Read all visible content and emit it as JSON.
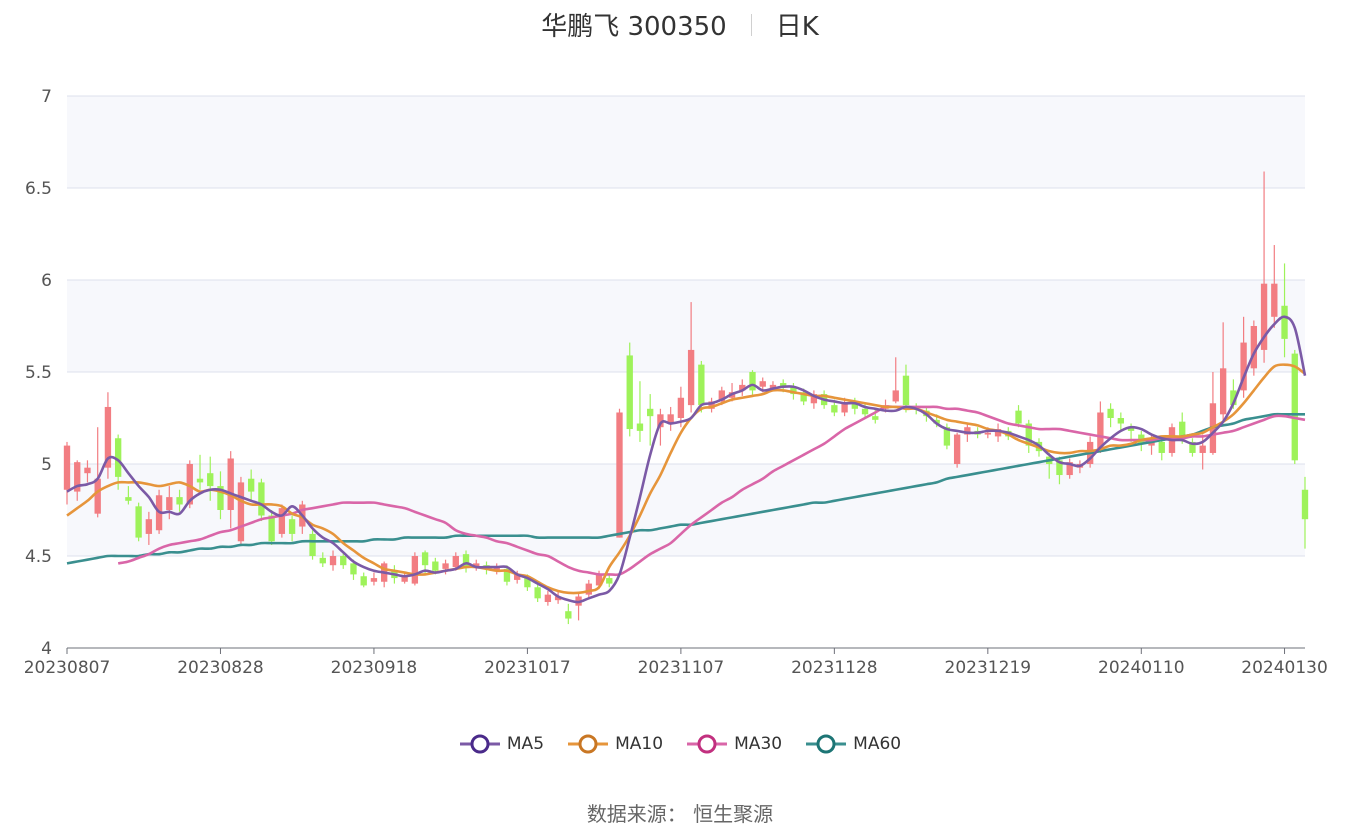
{
  "title": {
    "name_code": "华鹏飞 300350",
    "period": "日K"
  },
  "source": "数据来源： 恒生聚源",
  "colors": {
    "up": "#f27d82",
    "down": "#9ef25a",
    "ma5": "#7b5aa6",
    "ma10": "#e6953b",
    "ma30": "#d966a8",
    "ma60": "#3a8f8f",
    "grid": "#dde1ec",
    "band": "#f7f8fc"
  },
  "legend": [
    {
      "name": "MA5",
      "color": "#7b5aa6",
      "ring": "#4a2a8a"
    },
    {
      "name": "MA10",
      "color": "#e6953b",
      "ring": "#c97724"
    },
    {
      "name": "MA30",
      "color": "#d966a8",
      "ring": "#c2307f"
    },
    {
      "name": "MA60",
      "color": "#3a8f8f",
      "ring": "#1d7575"
    }
  ],
  "chart_data": {
    "type": "candlestick",
    "ylim": [
      4,
      7
    ],
    "yticks": [
      "4",
      "4.5",
      "5",
      "5.5",
      "6",
      "6.5",
      "7"
    ],
    "xticks": [
      {
        "label": "20230807",
        "index": 0
      },
      {
        "label": "20230828",
        "index": 15
      },
      {
        "label": "20230918",
        "index": 30
      },
      {
        "label": "20231017",
        "index": 45
      },
      {
        "label": "20231107",
        "index": 60
      },
      {
        "label": "20231128",
        "index": 75
      },
      {
        "label": "20231219",
        "index": 90
      },
      {
        "label": "20240110",
        "index": 105
      },
      {
        "label": "20240130",
        "index": 119
      }
    ],
    "candles": [
      [
        4.86,
        5.1,
        5.12,
        4.78
      ],
      [
        4.85,
        5.01,
        5.02,
        4.8
      ],
      [
        4.95,
        4.98,
        5.02,
        4.9
      ],
      [
        4.73,
        4.92,
        5.2,
        4.71
      ],
      [
        4.98,
        5.31,
        5.39,
        4.92
      ],
      [
        5.14,
        4.93,
        5.16,
        4.86
      ],
      [
        4.82,
        4.8,
        4.88,
        4.78
      ],
      [
        4.77,
        4.6,
        4.79,
        4.58
      ],
      [
        4.62,
        4.7,
        4.74,
        4.56
      ],
      [
        4.64,
        4.83,
        4.86,
        4.62
      ],
      [
        4.75,
        4.82,
        4.88,
        4.7
      ],
      [
        4.82,
        4.78,
        4.86,
        4.74
      ],
      [
        4.78,
        5.0,
        5.02,
        4.76
      ],
      [
        4.92,
        4.9,
        5.05,
        4.86
      ],
      [
        4.95,
        4.88,
        5.04,
        4.8
      ],
      [
        4.88,
        4.75,
        4.96,
        4.7
      ],
      [
        4.75,
        5.03,
        5.07,
        4.65
      ],
      [
        4.58,
        4.9,
        4.93,
        4.56
      ],
      [
        4.92,
        4.85,
        4.97,
        4.8
      ],
      [
        4.9,
        4.72,
        4.92,
        4.69
      ],
      [
        4.72,
        4.58,
        4.75,
        4.56
      ],
      [
        4.62,
        4.76,
        4.78,
        4.6
      ],
      [
        4.7,
        4.62,
        4.72,
        4.58
      ],
      [
        4.66,
        4.78,
        4.8,
        4.62
      ],
      [
        4.62,
        4.5,
        4.64,
        4.48
      ],
      [
        4.49,
        4.46,
        4.52,
        4.44
      ],
      [
        4.45,
        4.5,
        4.53,
        4.42
      ],
      [
        4.5,
        4.45,
        4.52,
        4.43
      ],
      [
        4.46,
        4.4,
        4.48,
        4.37
      ],
      [
        4.39,
        4.34,
        4.41,
        4.33
      ],
      [
        4.36,
        4.38,
        4.41,
        4.34
      ],
      [
        4.36,
        4.46,
        4.47,
        4.33
      ],
      [
        4.42,
        4.38,
        4.45,
        4.35
      ],
      [
        4.36,
        4.39,
        4.41,
        4.35
      ],
      [
        4.35,
        4.5,
        4.52,
        4.34
      ],
      [
        4.52,
        4.45,
        4.53,
        4.4
      ],
      [
        4.47,
        4.42,
        4.49,
        4.4
      ],
      [
        4.43,
        4.46,
        4.48,
        4.4
      ],
      [
        4.44,
        4.5,
        4.52,
        4.42
      ],
      [
        4.51,
        4.44,
        4.53,
        4.41
      ],
      [
        4.44,
        4.46,
        4.48,
        4.42
      ],
      [
        4.45,
        4.43,
        4.47,
        4.4
      ],
      [
        4.42,
        4.44,
        4.46,
        4.4
      ],
      [
        4.43,
        4.36,
        4.45,
        4.34
      ],
      [
        4.37,
        4.4,
        4.42,
        4.35
      ],
      [
        4.39,
        4.33,
        4.4,
        4.31
      ],
      [
        4.33,
        4.27,
        4.35,
        4.25
      ],
      [
        4.25,
        4.29,
        4.31,
        4.23
      ],
      [
        4.26,
        4.28,
        4.31,
        4.24
      ],
      [
        4.2,
        4.16,
        4.24,
        4.13
      ],
      [
        4.23,
        4.28,
        4.3,
        4.15
      ],
      [
        4.29,
        4.35,
        4.37,
        4.27
      ],
      [
        4.34,
        4.4,
        4.42,
        4.32
      ],
      [
        4.38,
        4.35,
        4.4,
        4.33
      ],
      [
        4.6,
        5.28,
        5.3,
        4.6
      ],
      [
        5.59,
        5.19,
        5.66,
        5.15
      ],
      [
        5.22,
        5.18,
        5.45,
        5.12
      ],
      [
        5.3,
        5.26,
        5.38,
        5.1
      ],
      [
        5.2,
        5.27,
        5.3,
        5.1
      ],
      [
        5.22,
        5.27,
        5.31,
        5.18
      ],
      [
        5.25,
        5.36,
        5.42,
        5.2
      ],
      [
        5.32,
        5.62,
        5.88,
        5.28
      ],
      [
        5.54,
        5.32,
        5.56,
        5.28
      ],
      [
        5.3,
        5.34,
        5.36,
        5.28
      ],
      [
        5.34,
        5.4,
        5.42,
        5.32
      ],
      [
        5.36,
        5.39,
        5.44,
        5.34
      ],
      [
        5.4,
        5.43,
        5.46,
        5.37
      ],
      [
        5.5,
        5.4,
        5.51,
        5.37
      ],
      [
        5.42,
        5.45,
        5.47,
        5.39
      ],
      [
        5.41,
        5.43,
        5.45,
        5.4
      ],
      [
        5.44,
        5.42,
        5.46,
        5.39
      ],
      [
        5.42,
        5.38,
        5.44,
        5.35
      ],
      [
        5.39,
        5.34,
        5.41,
        5.32
      ],
      [
        5.33,
        5.38,
        5.4,
        5.3
      ],
      [
        5.38,
        5.32,
        5.4,
        5.3
      ],
      [
        5.32,
        5.28,
        5.35,
        5.26
      ],
      [
        5.28,
        5.33,
        5.36,
        5.26
      ],
      [
        5.33,
        5.3,
        5.36,
        5.27
      ],
      [
        5.3,
        5.27,
        5.33,
        5.25
      ],
      [
        5.26,
        5.24,
        5.3,
        5.22
      ],
      [
        5.3,
        5.32,
        5.35,
        5.28
      ],
      [
        5.34,
        5.4,
        5.58,
        5.33
      ],
      [
        5.48,
        5.32,
        5.54,
        5.28
      ],
      [
        5.31,
        5.3,
        5.33,
        5.27
      ],
      [
        5.29,
        5.26,
        5.31,
        5.23
      ],
      [
        5.24,
        5.22,
        5.27,
        5.2
      ],
      [
        5.2,
        5.1,
        5.22,
        5.08
      ],
      [
        5.0,
        5.16,
        5.17,
        4.98
      ],
      [
        5.16,
        5.2,
        5.22,
        5.12
      ],
      [
        5.18,
        5.16,
        5.2,
        5.14
      ],
      [
        5.16,
        5.17,
        5.2,
        5.14
      ],
      [
        5.15,
        5.19,
        5.22,
        5.12
      ],
      [
        5.18,
        5.15,
        5.2,
        5.13
      ],
      [
        5.29,
        5.22,
        5.32,
        5.2
      ],
      [
        5.22,
        5.1,
        5.24,
        5.06
      ],
      [
        5.12,
        5.07,
        5.14,
        5.04
      ],
      [
        5.04,
        5.0,
        5.06,
        4.92
      ],
      [
        5.02,
        4.94,
        5.04,
        4.89
      ],
      [
        4.94,
        5.01,
        5.03,
        4.92
      ],
      [
        4.98,
        5.0,
        5.02,
        4.95
      ],
      [
        5.0,
        5.12,
        5.15,
        4.98
      ],
      [
        5.08,
        5.28,
        5.34,
        5.06
      ],
      [
        5.3,
        5.25,
        5.33,
        5.2
      ],
      [
        5.25,
        5.22,
        5.28,
        5.18
      ],
      [
        5.2,
        5.18,
        5.22,
        5.12
      ],
      [
        5.16,
        5.11,
        5.18,
        5.07
      ],
      [
        5.1,
        5.14,
        5.16,
        5.05
      ],
      [
        5.12,
        5.06,
        5.14,
        5.02
      ],
      [
        5.06,
        5.2,
        5.22,
        5.04
      ],
      [
        5.23,
        5.15,
        5.28,
        5.11
      ],
      [
        5.12,
        5.06,
        5.14,
        5.04
      ],
      [
        5.06,
        5.1,
        5.16,
        4.97
      ],
      [
        5.06,
        5.33,
        5.5,
        5.05
      ],
      [
        5.27,
        5.52,
        5.77,
        5.22
      ],
      [
        5.4,
        5.32,
        5.46,
        5.3
      ],
      [
        5.4,
        5.66,
        5.8,
        5.36
      ],
      [
        5.52,
        5.75,
        5.78,
        5.48
      ],
      [
        5.62,
        5.98,
        6.59,
        5.55
      ],
      [
        5.8,
        5.98,
        6.19,
        5.74
      ],
      [
        5.86,
        5.68,
        6.09,
        5.58
      ],
      [
        5.6,
        5.02,
        5.62,
        5.0
      ],
      [
        4.86,
        4.7,
        4.93,
        4.54
      ]
    ],
    "ma5": [
      4.85,
      4.88,
      4.89,
      4.92,
      5.03,
      5.02,
      4.95,
      4.88,
      4.82,
      4.74,
      4.74,
      4.73,
      4.8,
      4.84,
      4.86,
      4.86,
      4.84,
      4.82,
      4.8,
      4.78,
      4.74,
      4.72,
      4.77,
      4.72,
      4.65,
      4.6,
      4.57,
      4.52,
      4.47,
      4.44,
      4.42,
      4.41,
      4.4,
      4.39,
      4.4,
      4.42,
      4.41,
      4.42,
      4.43,
      4.46,
      4.44,
      4.44,
      4.44,
      4.44,
      4.4,
      4.38,
      4.35,
      4.32,
      4.28,
      4.26,
      4.25,
      4.27,
      4.29,
      4.31,
      4.4,
      4.6,
      4.82,
      5.05,
      5.22,
      5.22,
      5.23,
      5.25,
      5.32,
      5.33,
      5.35,
      5.38,
      5.4,
      5.43,
      5.4,
      5.41,
      5.42,
      5.42,
      5.4,
      5.37,
      5.35,
      5.34,
      5.33,
      5.33,
      5.31,
      5.3,
      5.29,
      5.29,
      5.31,
      5.3,
      5.27,
      5.22,
      5.19,
      5.18,
      5.17,
      5.17,
      5.18,
      5.18,
      5.17,
      5.15,
      5.13,
      5.1,
      5.05,
      5.01,
      5.0,
      4.99,
      5.03,
      5.09,
      5.14,
      5.18,
      5.2,
      5.19,
      5.16,
      5.14,
      5.13,
      5.13,
      5.11,
      5.12,
      5.17,
      5.23,
      5.33,
      5.47,
      5.6,
      5.69,
      5.76,
      5.8,
      5.74,
      5.48
    ],
    "ma10": [
      4.72,
      4.76,
      4.8,
      4.85,
      4.88,
      4.9,
      4.9,
      4.9,
      4.89,
      4.88,
      4.89,
      4.9,
      4.88,
      4.85,
      4.86,
      4.85,
      4.83,
      4.8,
      4.78,
      4.78,
      4.78,
      4.77,
      4.73,
      4.71,
      4.67,
      4.65,
      4.62,
      4.57,
      4.53,
      4.49,
      4.46,
      4.43,
      4.42,
      4.41,
      4.4,
      4.4,
      4.41,
      4.42,
      4.43,
      4.44,
      4.44,
      4.43,
      4.42,
      4.42,
      4.4,
      4.39,
      4.36,
      4.33,
      4.31,
      4.3,
      4.3,
      4.31,
      4.33,
      4.44,
      4.52,
      4.61,
      4.72,
      4.84,
      4.94,
      5.06,
      5.17,
      5.25,
      5.3,
      5.31,
      5.33,
      5.35,
      5.36,
      5.37,
      5.38,
      5.4,
      5.4,
      5.39,
      5.38,
      5.37,
      5.37,
      5.36,
      5.35,
      5.34,
      5.33,
      5.32,
      5.31,
      5.31,
      5.3,
      5.3,
      5.28,
      5.26,
      5.24,
      5.23,
      5.22,
      5.21,
      5.19,
      5.18,
      5.16,
      5.13,
      5.11,
      5.09,
      5.07,
      5.06,
      5.06,
      5.07,
      5.07,
      5.08,
      5.1,
      5.1,
      5.11,
      5.13,
      5.14,
      5.15,
      5.15,
      5.15,
      5.16,
      5.17,
      5.2,
      5.23,
      5.27,
      5.33,
      5.4,
      5.47,
      5.53,
      5.54,
      5.53,
      5.49
    ],
    "ma30": [
      4.46,
      4.47,
      4.49,
      4.51,
      4.54,
      4.56,
      4.57,
      4.58,
      4.59,
      4.61,
      4.63,
      4.64,
      4.66,
      4.68,
      4.7,
      4.71,
      4.72,
      4.73,
      4.75,
      4.76,
      4.77,
      4.78,
      4.79,
      4.79,
      4.79,
      4.79,
      4.78,
      4.77,
      4.76,
      4.74,
      4.72,
      4.7,
      4.68,
      4.64,
      4.62,
      4.61,
      4.6,
      4.58,
      4.57,
      4.55,
      4.53,
      4.51,
      4.5,
      4.47,
      4.44,
      4.42,
      4.41,
      4.4,
      4.4,
      4.4,
      4.43,
      4.47,
      4.51,
      4.54,
      4.57,
      4.62,
      4.67,
      4.71,
      4.75,
      4.79,
      4.82,
      4.86,
      4.89,
      4.92,
      4.96,
      4.99,
      5.02,
      5.05,
      5.08,
      5.11,
      5.15,
      5.19,
      5.22,
      5.25,
      5.28,
      5.31,
      5.31,
      5.31,
      5.31,
      5.31,
      5.31,
      5.3,
      5.3,
      5.29,
      5.28,
      5.26,
      5.24,
      5.22,
      5.21,
      5.2,
      5.19,
      5.19,
      5.19,
      5.18,
      5.17,
      5.16,
      5.15,
      5.14,
      5.13,
      5.13,
      5.13,
      5.13,
      5.14,
      5.14,
      5.14,
      5.15,
      5.15,
      5.16,
      5.17,
      5.18,
      5.2,
      5.22,
      5.24,
      5.26,
      5.26,
      5.25,
      5.24
    ],
    "ma60": [
      4.46,
      4.47,
      4.48,
      4.49,
      4.5,
      4.5,
      4.5,
      4.5,
      4.51,
      4.51,
      4.52,
      4.52,
      4.53,
      4.54,
      4.54,
      4.55,
      4.55,
      4.56,
      4.56,
      4.57,
      4.57,
      4.57,
      4.57,
      4.58,
      4.58,
      4.58,
      4.58,
      4.58,
      4.58,
      4.58,
      4.59,
      4.59,
      4.59,
      4.6,
      4.6,
      4.6,
      4.6,
      4.6,
      4.61,
      4.61,
      4.61,
      4.61,
      4.61,
      4.61,
      4.61,
      4.61,
      4.6,
      4.6,
      4.6,
      4.6,
      4.6,
      4.6,
      4.6,
      4.61,
      4.62,
      4.63,
      4.64,
      4.64,
      4.65,
      4.66,
      4.67,
      4.67,
      4.68,
      4.69,
      4.7,
      4.71,
      4.72,
      4.73,
      4.74,
      4.75,
      4.76,
      4.77,
      4.78,
      4.79,
      4.79,
      4.8,
      4.81,
      4.82,
      4.83,
      4.84,
      4.85,
      4.86,
      4.87,
      4.88,
      4.89,
      4.9,
      4.92,
      4.93,
      4.94,
      4.95,
      4.96,
      4.97,
      4.98,
      4.99,
      5.0,
      5.01,
      5.02,
      5.03,
      5.04,
      5.05,
      5.06,
      5.07,
      5.08,
      5.09,
      5.1,
      5.11,
      5.12,
      5.13,
      5.14,
      5.15,
      5.16,
      5.18,
      5.2,
      5.21,
      5.22,
      5.24,
      5.25,
      5.26,
      5.27,
      5.27,
      5.27,
      5.27
    ]
  }
}
